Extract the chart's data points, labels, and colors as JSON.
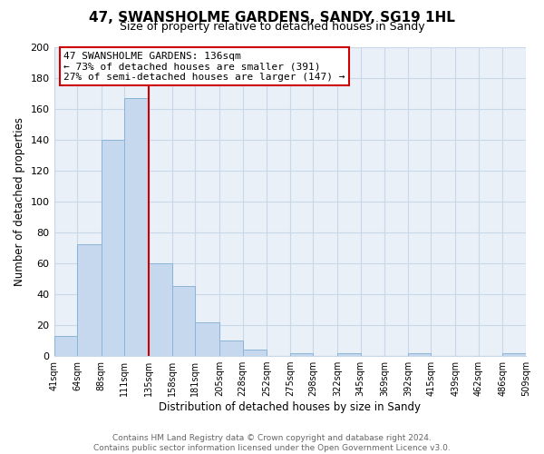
{
  "title": "47, SWANSHOLME GARDENS, SANDY, SG19 1HL",
  "subtitle": "Size of property relative to detached houses in Sandy",
  "xlabel": "Distribution of detached houses by size in Sandy",
  "ylabel": "Number of detached properties",
  "bar_color": "#c5d8ee",
  "bar_edge_color": "#8ab4d8",
  "bin_edges": [
    41,
    64,
    88,
    111,
    135,
    158,
    181,
    205,
    228,
    252,
    275,
    298,
    322,
    345,
    369,
    392,
    415,
    439,
    462,
    486,
    509
  ],
  "bin_labels": [
    "41sqm",
    "64sqm",
    "88sqm",
    "111sqm",
    "135sqm",
    "158sqm",
    "181sqm",
    "205sqm",
    "228sqm",
    "252sqm",
    "275sqm",
    "298sqm",
    "322sqm",
    "345sqm",
    "369sqm",
    "392sqm",
    "415sqm",
    "439sqm",
    "462sqm",
    "486sqm",
    "509sqm"
  ],
  "counts": [
    13,
    72,
    140,
    167,
    60,
    45,
    22,
    10,
    4,
    0,
    2,
    0,
    2,
    0,
    0,
    2,
    0,
    0,
    0,
    2
  ],
  "property_line_x": 135,
  "property_line_color": "#cc0000",
  "ylim": [
    0,
    200
  ],
  "yticks": [
    0,
    20,
    40,
    60,
    80,
    100,
    120,
    140,
    160,
    180,
    200
  ],
  "annotation_line1": "47 SWANSHOLME GARDENS: 136sqm",
  "annotation_line2": "← 73% of detached houses are smaller (391)",
  "annotation_line3": "27% of semi-detached houses are larger (147) →",
  "footer_text": "Contains HM Land Registry data © Crown copyright and database right 2024.\nContains public sector information licensed under the Open Government Licence v3.0.",
  "background_color": "#ffffff",
  "plot_bg_color": "#eaf0f8",
  "grid_color": "#c8d8e8"
}
